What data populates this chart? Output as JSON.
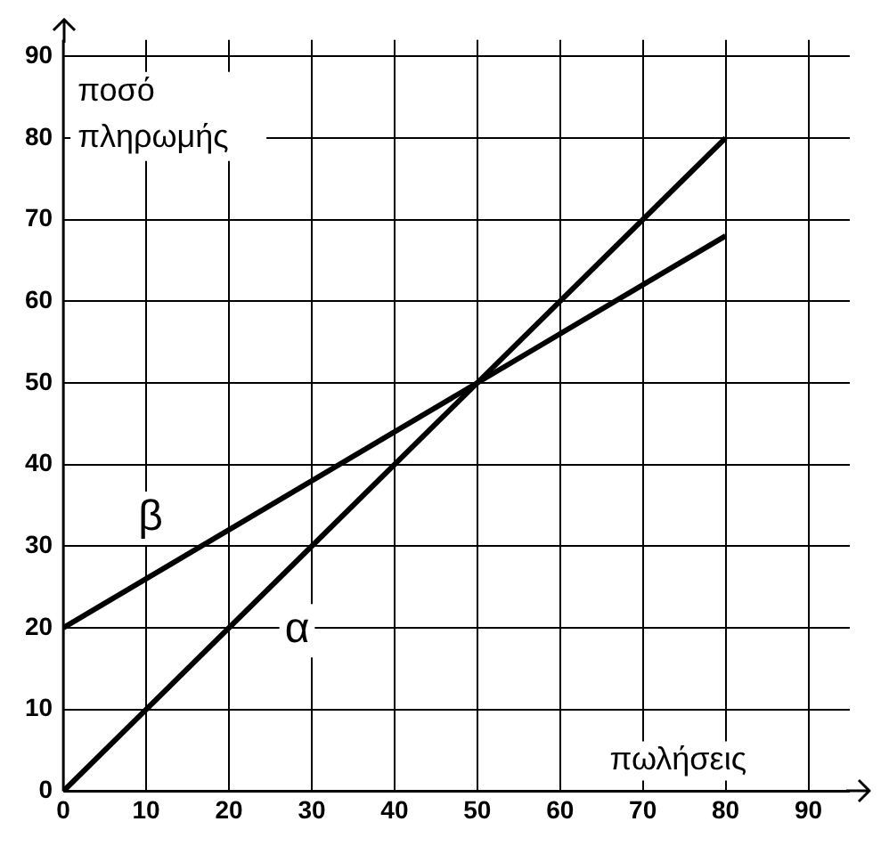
{
  "chart_data": {
    "type": "line",
    "xlabel": "πωλήσεις",
    "ylabel": "ποσό πληρωμής",
    "xlim": [
      0,
      95
    ],
    "ylim": [
      0,
      92
    ],
    "xticks": [
      0,
      10,
      20,
      30,
      40,
      50,
      60,
      70,
      80,
      90
    ],
    "yticks": [
      0,
      10,
      20,
      30,
      40,
      50,
      60,
      70,
      80,
      90
    ],
    "x": [
      0,
      80
    ],
    "series": [
      {
        "name": "α",
        "values": [
          0,
          80
        ],
        "color": "#000000"
      },
      {
        "name": "β",
        "values": [
          20,
          68
        ],
        "color": "#000000"
      }
    ],
    "grid": true,
    "marker": "none",
    "line_style": "solid",
    "legend": false
  }
}
